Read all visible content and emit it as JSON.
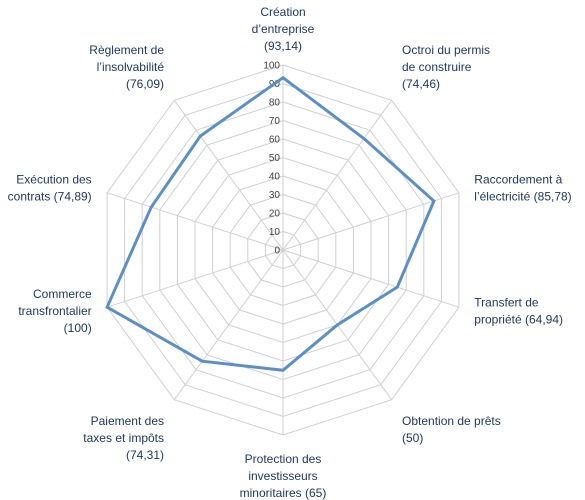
{
  "chart_data": {
    "type": "radar",
    "title": "",
    "categories": [
      [
        "Création",
        "d’entreprise",
        "(93,14)"
      ],
      [
        "Octroi du permis",
        "de construire",
        "(74,46)"
      ],
      [
        "Raccordement à",
        "l’électricité (85,78)"
      ],
      [
        "Transfert de",
        "propriété (64,94)"
      ],
      [
        "Obtention de prêts",
        "(50)"
      ],
      [
        "Protection des",
        "investisseurs",
        "minoritaires (65)"
      ],
      [
        "Paiement des",
        "taxes et impôts",
        "(74,31)"
      ],
      [
        "Commerce",
        "transfrontalier",
        "(100)"
      ],
      [
        "Exécution des",
        "contrats (74,89)"
      ],
      [
        "Règlement de",
        "l’insolvabilité",
        "(76,09)"
      ]
    ],
    "series": [
      {
        "values": [
          93.14,
          74.46,
          85.78,
          64.94,
          50,
          65,
          74.31,
          100,
          74.89,
          76.09
        ]
      }
    ],
    "rlim": [
      0,
      100
    ],
    "ticks": [
      "0",
      "10",
      "20",
      "30",
      "40",
      "50",
      "60",
      "70",
      "80",
      "90",
      "100"
    ],
    "grid": true,
    "colors": {
      "series": "#5b8fc8",
      "grid": "#d0d0d0",
      "labels": "#1f3864",
      "ticks": "#404040"
    }
  }
}
